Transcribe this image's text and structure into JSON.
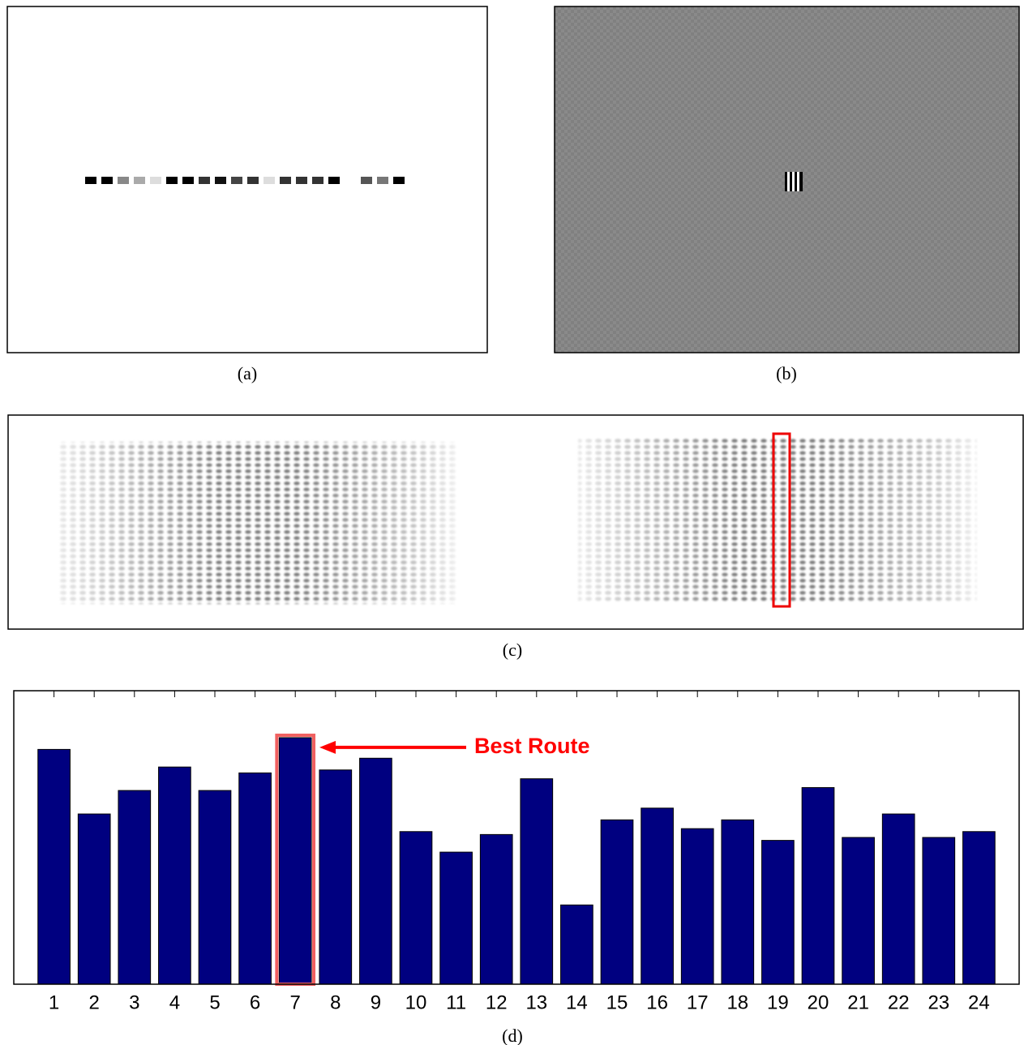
{
  "captions": {
    "a": "(a)",
    "b": "(b)",
    "c": "(c)"
  },
  "chart_data": {
    "type": "bar",
    "caption": "(d)",
    "categories": [
      "1",
      "2",
      "3",
      "4",
      "5",
      "6",
      "7",
      "8",
      "9",
      "10",
      "11",
      "12",
      "13",
      "14",
      "15",
      "16",
      "17",
      "18",
      "19",
      "20",
      "21",
      "22",
      "23",
      "24"
    ],
    "values": [
      0.8,
      0.58,
      0.66,
      0.74,
      0.66,
      0.72,
      0.84,
      0.73,
      0.77,
      0.52,
      0.45,
      0.51,
      0.7,
      0.27,
      0.56,
      0.6,
      0.53,
      0.56,
      0.49,
      0.67,
      0.5,
      0.58,
      0.5,
      0.52
    ],
    "color": "#000080",
    "ylim": [
      0,
      1
    ],
    "annotation": {
      "text": "Best Route",
      "category": 6,
      "color": "#ff0000",
      "box_color": "#f06060"
    }
  }
}
